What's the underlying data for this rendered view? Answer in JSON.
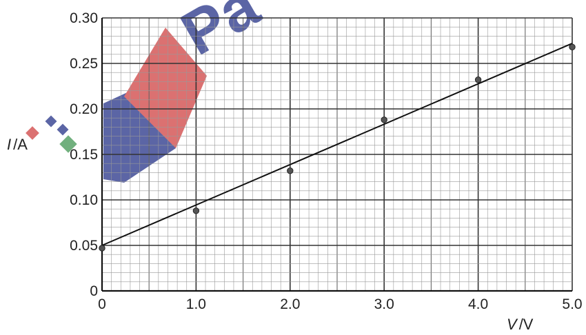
{
  "chart_data": {
    "type": "scatter",
    "title": "",
    "xlabel": {
      "symbol": "V",
      "unit": "/V"
    },
    "ylabel": {
      "symbol": "I",
      "unit": "/A"
    },
    "xlim": [
      0,
      5.0
    ],
    "ylim": [
      0,
      0.3
    ],
    "x_ticks": [
      "0",
      "1.0",
      "2.0",
      "3.0",
      "4.0",
      "5.0"
    ],
    "y_ticks": [
      "0",
      "0.05",
      "0.10",
      "0.15",
      "0.20",
      "0.25",
      "0.30"
    ],
    "grid": true,
    "points": [
      {
        "x": 0.0,
        "y": 0.047
      },
      {
        "x": 1.0,
        "y": 0.088
      },
      {
        "x": 2.0,
        "y": 0.132
      },
      {
        "x": 3.0,
        "y": 0.188
      },
      {
        "x": 4.0,
        "y": 0.232
      },
      {
        "x": 5.0,
        "y": 0.268
      }
    ],
    "fit_line": {
      "x": [
        0.0,
        5.0
      ],
      "y": [
        0.05,
        0.272
      ]
    }
  },
  "watermark": {
    "text": "Pa",
    "colors": [
      "#d24a4a",
      "#2e3a8c",
      "#4a9a5a"
    ]
  }
}
